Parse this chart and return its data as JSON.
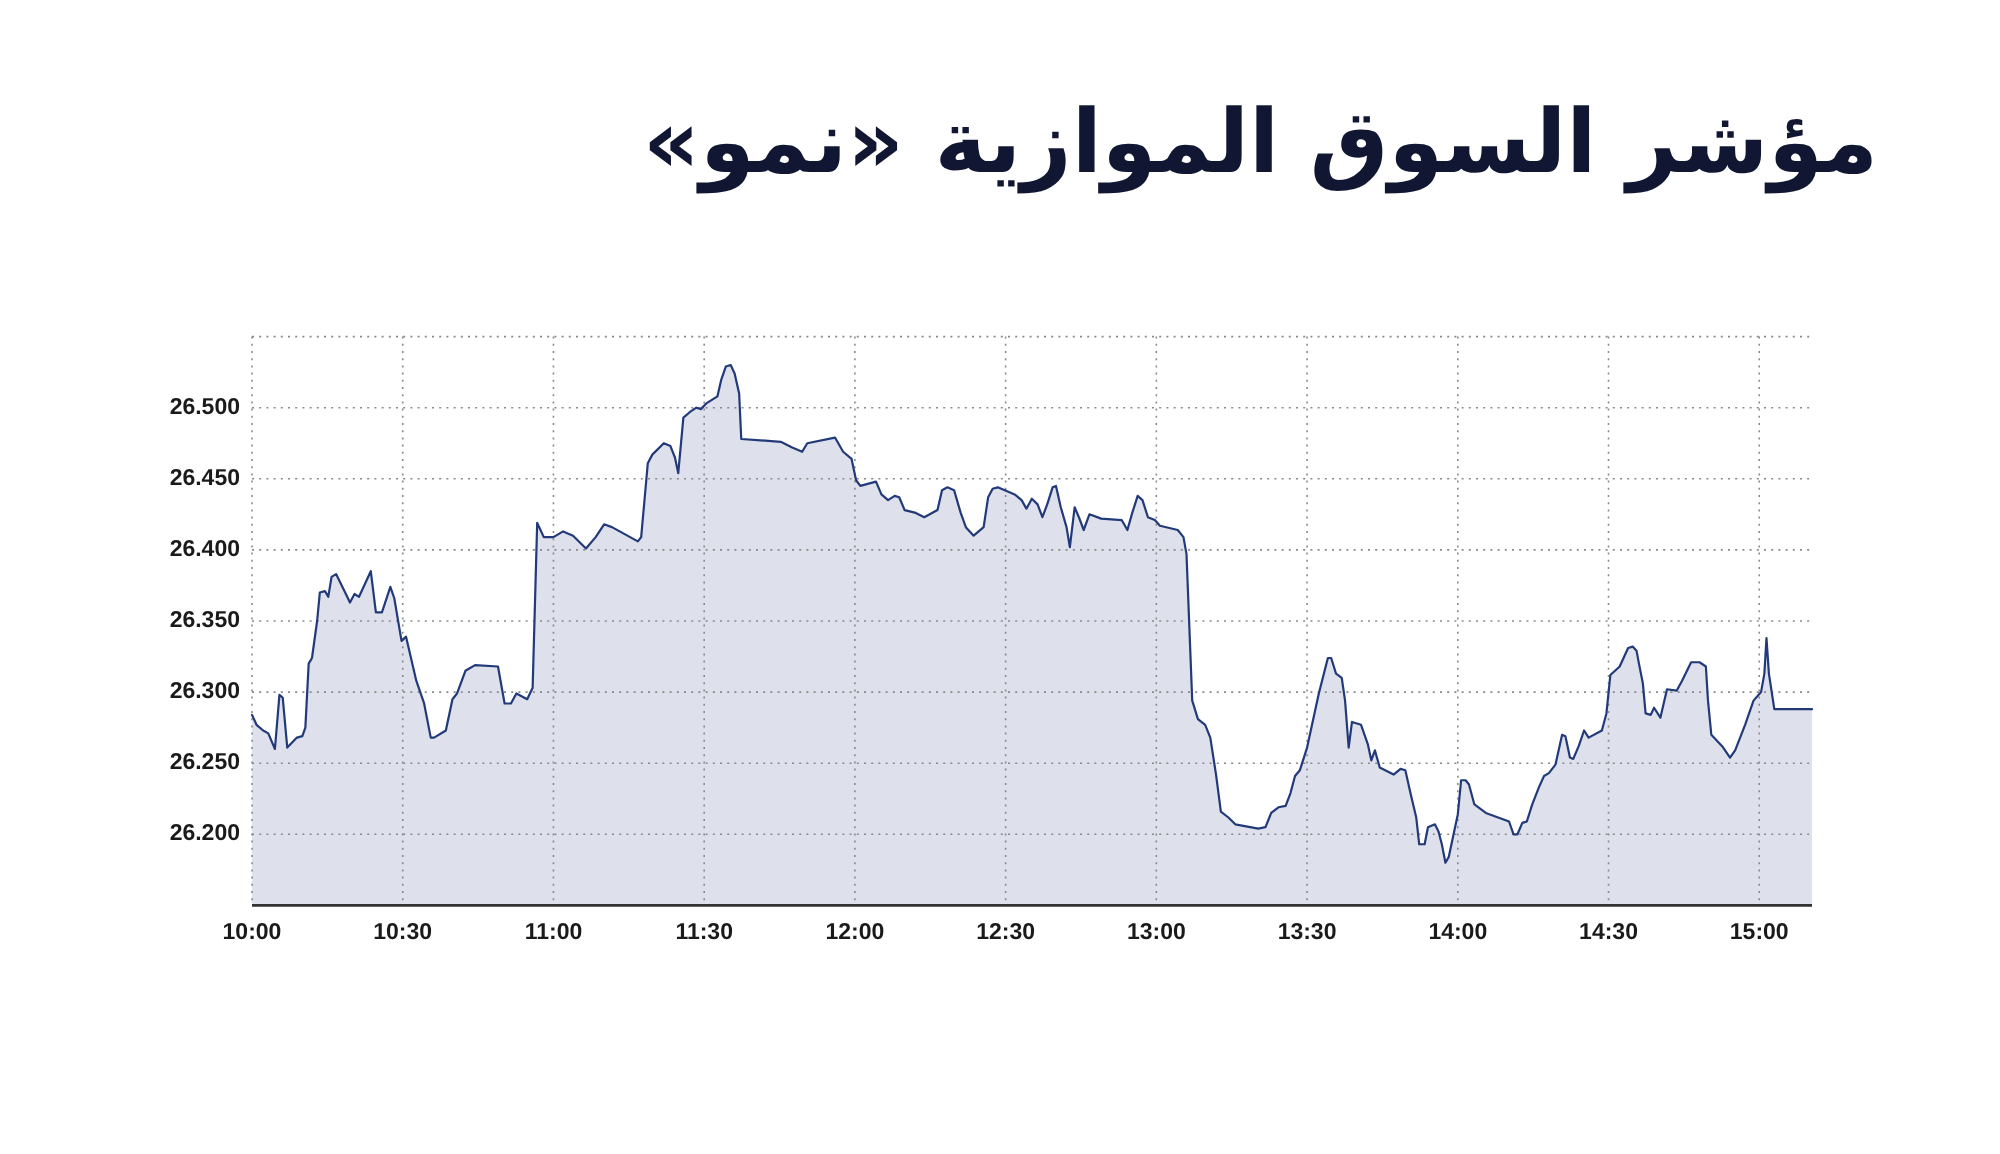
{
  "chart_data": {
    "type": "area",
    "title": "مؤشر السوق الموازية «نمو»",
    "x": [
      10.0,
      10.015,
      10.037,
      10.054,
      10.076,
      10.091,
      10.102,
      10.117,
      10.149,
      10.167,
      10.177,
      10.188,
      10.199,
      10.216,
      10.225,
      10.242,
      10.253,
      10.264,
      10.279,
      10.307,
      10.325,
      10.34,
      10.355,
      10.394,
      10.411,
      10.431,
      10.459,
      10.472,
      10.496,
      10.511,
      10.545,
      10.571,
      10.593,
      10.604,
      10.643,
      10.665,
      10.68,
      10.708,
      10.74,
      10.816,
      10.838,
      10.859,
      10.877,
      10.913,
      10.931,
      10.946,
      10.957,
      10.968,
      11.0,
      11.032,
      11.065,
      11.108,
      11.14,
      11.168,
      11.194,
      11.28,
      11.291,
      11.313,
      11.328,
      11.366,
      11.388,
      11.403,
      11.414,
      11.431,
      11.453,
      11.474,
      11.489,
      11.507,
      11.544,
      11.557,
      11.572,
      11.588,
      11.601,
      11.616,
      11.623,
      11.754,
      11.792,
      11.825,
      11.842,
      11.934,
      11.961,
      11.989,
      12.004,
      12.018,
      12.07,
      12.088,
      12.11,
      12.132,
      12.147,
      12.165,
      12.202,
      12.23,
      12.274,
      12.289,
      12.307,
      12.329,
      12.351,
      12.368,
      12.394,
      12.427,
      12.442,
      12.457,
      12.474,
      12.53,
      12.553,
      12.569,
      12.587,
      12.606,
      12.622,
      12.638,
      12.656,
      12.667,
      12.683,
      12.702,
      12.713,
      12.729,
      12.743,
      12.759,
      12.778,
      12.817,
      12.885,
      12.904,
      12.92,
      12.938,
      12.954,
      12.972,
      12.995,
      13.012,
      13.071,
      13.09,
      13.1,
      13.119,
      13.138,
      13.162,
      13.179,
      13.198,
      13.214,
      13.238,
      13.262,
      13.338,
      13.362,
      13.381,
      13.405,
      13.429,
      13.445,
      13.46,
      13.476,
      13.5,
      13.539,
      13.569,
      13.58,
      13.596,
      13.615,
      13.626,
      13.638,
      13.649,
      13.679,
      13.702,
      13.713,
      13.725,
      13.741,
      13.787,
      13.81,
      13.826,
      13.844,
      13.862,
      13.872,
      13.89,
      13.901,
      13.924,
      13.936,
      13.947,
      13.959,
      13.97,
      13.986,
      14.0,
      14.011,
      14.026,
      14.037,
      14.055,
      14.093,
      14.17,
      14.185,
      14.198,
      14.214,
      14.229,
      14.247,
      14.269,
      14.286,
      14.302,
      14.324,
      14.346,
      14.357,
      14.372,
      14.383,
      14.401,
      14.419,
      14.434,
      14.478,
      14.493,
      14.506,
      14.537,
      14.565,
      14.58,
      14.593,
      14.601,
      14.614,
      14.623,
      14.64,
      14.651,
      14.672,
      14.694,
      14.726,
      14.744,
      14.774,
      14.802,
      14.823,
      14.83,
      14.841,
      14.877,
      14.903,
      14.92,
      14.953,
      14.981,
      15.006,
      15.017,
      15.024,
      15.032,
      15.05,
      15.175
    ],
    "values": [
      26.284,
      26.277,
      26.273,
      26.271,
      26.26,
      26.298,
      26.296,
      26.261,
      26.268,
      26.269,
      26.275,
      26.32,
      26.324,
      26.35,
      26.37,
      26.371,
      26.367,
      26.381,
      26.383,
      26.371,
      26.363,
      26.369,
      26.367,
      26.385,
      26.356,
      26.356,
      26.374,
      26.366,
      26.336,
      26.339,
      26.308,
      26.292,
      26.268,
      26.268,
      26.273,
      26.295,
      26.299,
      26.315,
      26.319,
      26.318,
      26.292,
      26.292,
      26.299,
      26.295,
      26.303,
      26.419,
      26.414,
      26.409,
      26.409,
      26.413,
      26.41,
      26.401,
      26.409,
      26.418,
      26.416,
      26.406,
      26.409,
      26.461,
      26.467,
      26.475,
      26.473,
      26.465,
      26.454,
      26.493,
      26.497,
      26.5,
      26.499,
      26.503,
      26.508,
      26.52,
      26.529,
      26.53,
      26.524,
      26.51,
      26.478,
      26.476,
      26.472,
      26.469,
      26.475,
      26.479,
      26.469,
      26.464,
      26.449,
      26.445,
      26.448,
      26.439,
      26.435,
      26.438,
      26.437,
      26.428,
      26.426,
      26.423,
      26.428,
      26.442,
      26.444,
      26.442,
      26.426,
      26.416,
      26.41,
      26.416,
      26.437,
      26.443,
      26.444,
      26.439,
      26.435,
      26.429,
      26.436,
      26.432,
      26.423,
      26.432,
      26.444,
      26.445,
      26.43,
      26.416,
      26.402,
      26.43,
      26.423,
      26.414,
      26.425,
      26.422,
      26.421,
      26.414,
      26.426,
      26.438,
      26.435,
      26.423,
      26.421,
      26.417,
      26.414,
      26.409,
      26.397,
      26.294,
      26.281,
      26.277,
      26.268,
      26.242,
      26.216,
      26.212,
      26.207,
      26.204,
      26.205,
      26.215,
      26.219,
      26.22,
      26.229,
      26.241,
      26.245,
      26.261,
      26.299,
      26.324,
      26.324,
      26.313,
      26.31,
      26.294,
      26.261,
      26.279,
      26.277,
      26.263,
      26.252,
      26.259,
      26.247,
      26.242,
      26.246,
      26.245,
      26.228,
      26.212,
      26.193,
      26.193,
      26.205,
      26.207,
      26.202,
      26.193,
      26.18,
      26.184,
      26.2,
      26.214,
      26.238,
      26.238,
      26.235,
      26.221,
      26.215,
      26.209,
      26.2,
      26.2,
      26.208,
      26.209,
      26.221,
      26.233,
      26.241,
      26.243,
      26.249,
      26.27,
      26.269,
      26.254,
      26.253,
      26.262,
      26.273,
      26.268,
      26.273,
      26.285,
      26.312,
      26.318,
      26.331,
      26.332,
      26.329,
      26.32,
      26.306,
      26.285,
      26.284,
      26.289,
      26.282,
      26.302,
      26.301,
      26.308,
      26.321,
      26.321,
      26.318,
      26.294,
      26.27,
      26.262,
      26.254,
      26.259,
      26.277,
      26.294,
      26.3,
      26.313,
      26.338,
      26.313,
      26.288,
      26.288
    ],
    "color": "#223a7a",
    "xlim": [
      10,
      15.175
    ],
    "ylim": [
      26.15,
      26.55
    ],
    "xticks": [
      {
        "value": 10,
        "label": "10:00"
      },
      {
        "value": 10.5,
        "label": "10:30"
      },
      {
        "value": 11,
        "label": "11:00"
      },
      {
        "value": 11.5,
        "label": "11:30"
      },
      {
        "value": 12,
        "label": "12:00"
      },
      {
        "value": 12.5,
        "label": "12:30"
      },
      {
        "value": 13,
        "label": "13:00"
      },
      {
        "value": 13.5,
        "label": "13:30"
      },
      {
        "value": 14,
        "label": "14:00"
      },
      {
        "value": 14.5,
        "label": "14:30"
      },
      {
        "value": 15,
        "label": "15:00"
      }
    ],
    "yticks": [
      {
        "value": 26.2,
        "label": "26.200"
      },
      {
        "value": 26.25,
        "label": "26.250"
      },
      {
        "value": 26.3,
        "label": "26.300"
      },
      {
        "value": 26.35,
        "label": "26.350"
      },
      {
        "value": 26.4,
        "label": "26.400"
      },
      {
        "value": 26.45,
        "label": "26.450"
      },
      {
        "value": 26.5,
        "label": "26.500"
      }
    ],
    "grid": true
  }
}
